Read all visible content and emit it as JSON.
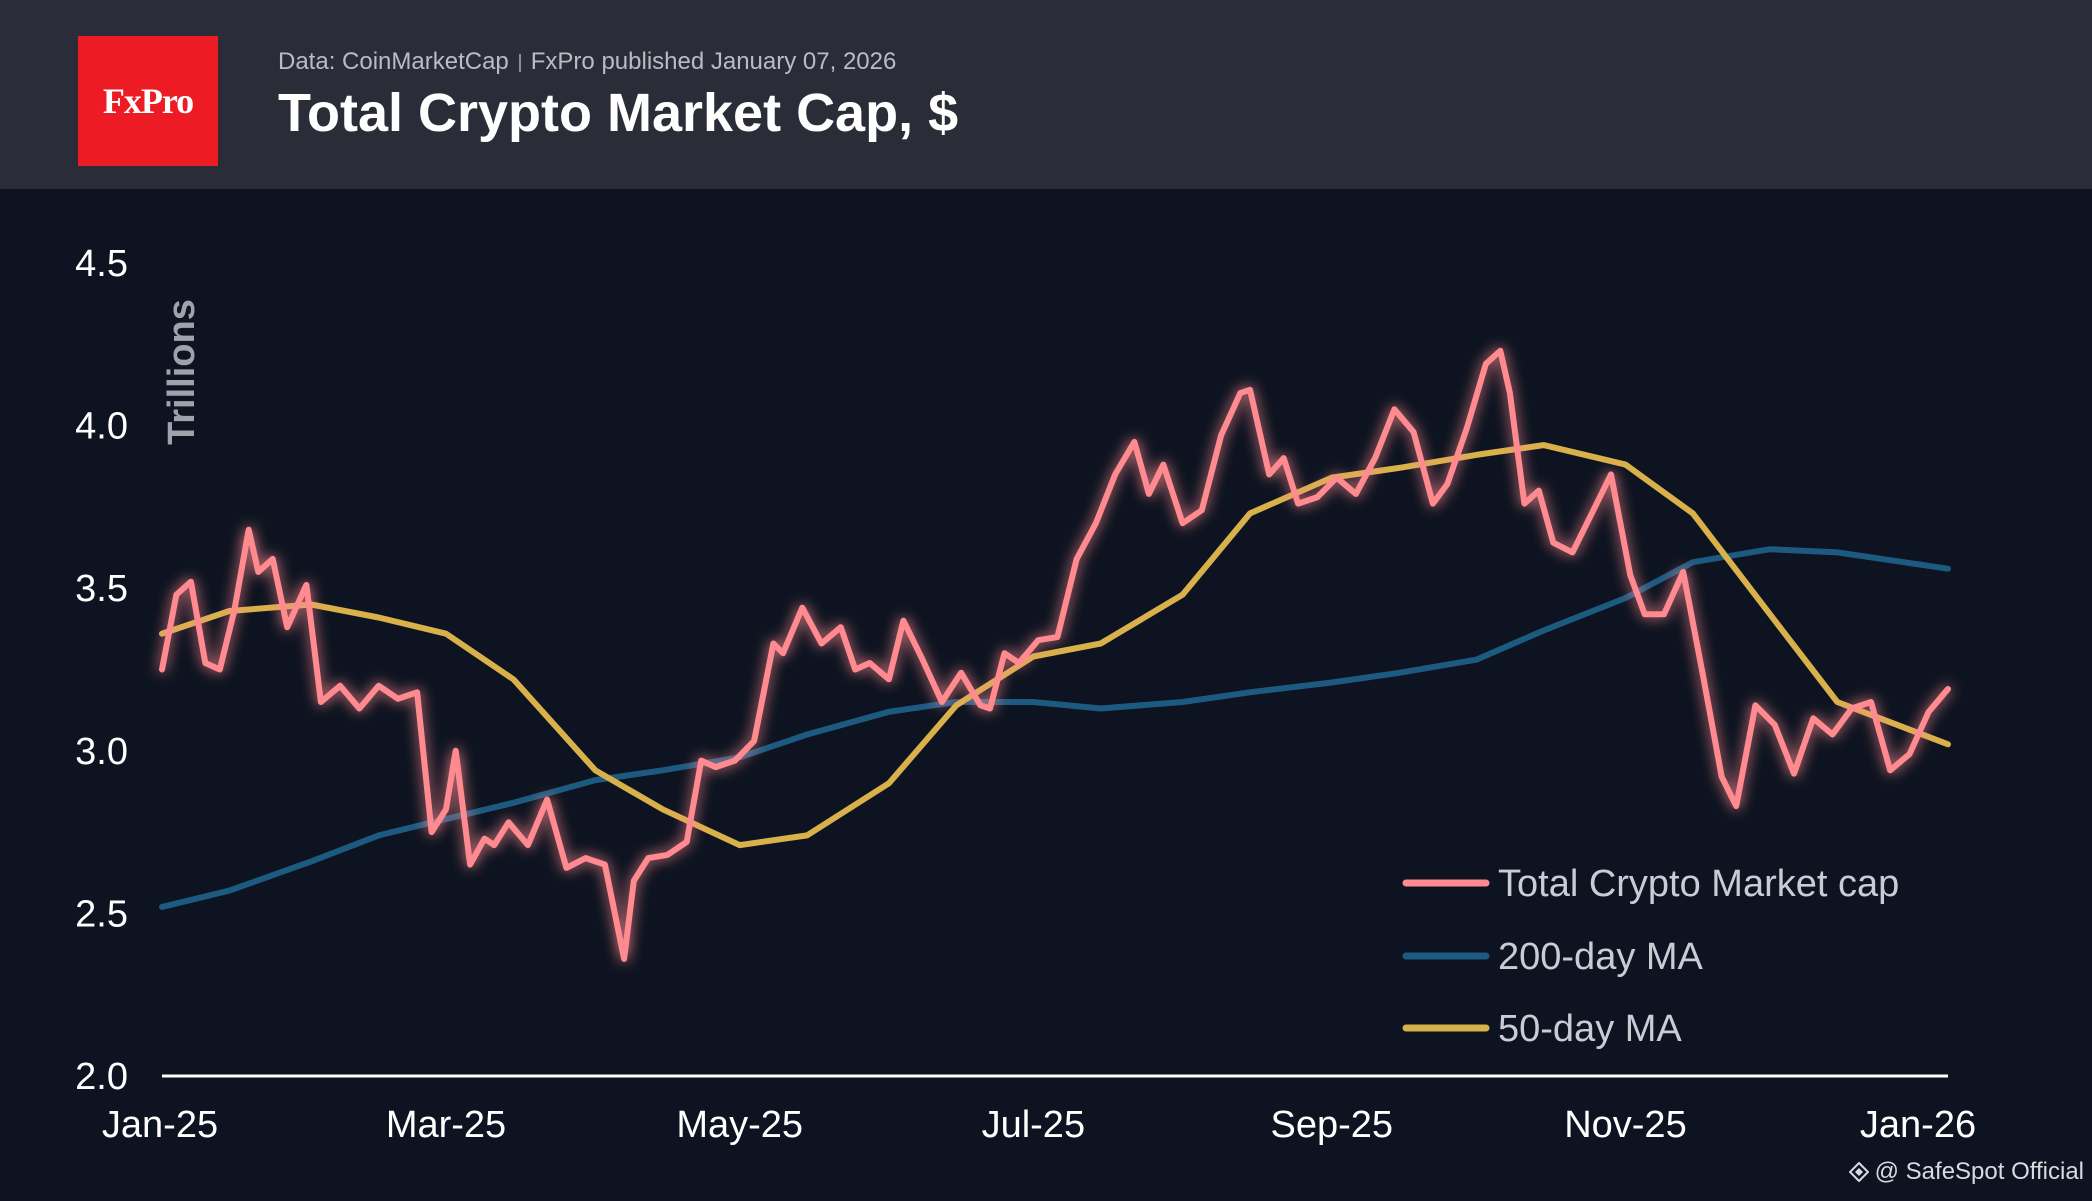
{
  "header": {
    "logo_text": "FxPro",
    "source": "Data: CoinMarketCap",
    "published": "FxPro published January 07, 2026",
    "title": "Total Crypto Market Cap, $"
  },
  "watermark": "@ SafeSpot Official",
  "colors": {
    "background": "#0d1320",
    "header_bg": "#2a2d38",
    "logo_bg": "#ec1b24",
    "market_cap": "#ff8a8f",
    "ma200": "#1d5a80",
    "ma50": "#d9b14a"
  },
  "chart_data": {
    "type": "line",
    "title": "Total Crypto Market Cap, $",
    "ylabel": "Trillions",
    "xlabel": "",
    "ylim": [
      2.0,
      4.5
    ],
    "yticks": [
      "2.0",
      "2.5",
      "3.0",
      "3.5",
      "4.0",
      "4.5"
    ],
    "xticks": [
      "Jan-25",
      "Mar-25",
      "May-25",
      "Jul-25",
      "Sep-25",
      "Nov-25",
      "Jan-26"
    ],
    "xlim": [
      "2025-01-01",
      "2026-01-07"
    ],
    "legend_position": "bottom-right",
    "grid": false,
    "series": [
      {
        "name": "Total Crypto Market cap",
        "x": [
          "2025-01-01",
          "2025-01-04",
          "2025-01-07",
          "2025-01-10",
          "2025-01-13",
          "2025-01-16",
          "2025-01-19",
          "2025-01-21",
          "2025-01-24",
          "2025-01-27",
          "2025-01-31",
          "2025-02-03",
          "2025-02-07",
          "2025-02-11",
          "2025-02-15",
          "2025-02-19",
          "2025-02-23",
          "2025-02-26",
          "2025-03-01",
          "2025-03-03",
          "2025-03-06",
          "2025-03-09",
          "2025-03-11",
          "2025-03-14",
          "2025-03-18",
          "2025-03-22",
          "2025-03-26",
          "2025-03-30",
          "2025-04-03",
          "2025-04-07",
          "2025-04-09",
          "2025-04-12",
          "2025-04-16",
          "2025-04-20",
          "2025-04-23",
          "2025-04-26",
          "2025-04-30",
          "2025-05-04",
          "2025-05-08",
          "2025-05-10",
          "2025-05-14",
          "2025-05-18",
          "2025-05-22",
          "2025-05-25",
          "2025-05-28",
          "2025-06-01",
          "2025-06-04",
          "2025-06-08",
          "2025-06-12",
          "2025-06-16",
          "2025-06-20",
          "2025-06-22",
          "2025-06-25",
          "2025-06-28",
          "2025-07-02",
          "2025-07-06",
          "2025-07-10",
          "2025-07-14",
          "2025-07-18",
          "2025-07-22",
          "2025-07-25",
          "2025-07-28",
          "2025-08-01",
          "2025-08-05",
          "2025-08-09",
          "2025-08-13",
          "2025-08-15",
          "2025-08-19",
          "2025-08-22",
          "2025-08-25",
          "2025-08-29",
          "2025-09-02",
          "2025-09-06",
          "2025-09-10",
          "2025-09-14",
          "2025-09-18",
          "2025-09-22",
          "2025-09-25",
          "2025-09-29",
          "2025-10-03",
          "2025-10-06",
          "2025-10-08",
          "2025-10-11",
          "2025-10-14",
          "2025-10-17",
          "2025-10-21",
          "2025-10-25",
          "2025-10-29",
          "2025-11-02",
          "2025-11-05",
          "2025-11-09",
          "2025-11-13",
          "2025-11-17",
          "2025-11-21",
          "2025-11-24",
          "2025-11-28",
          "2025-12-02",
          "2025-12-06",
          "2025-12-10",
          "2025-12-14",
          "2025-12-18",
          "2025-12-22",
          "2025-12-26",
          "2025-12-30",
          "2026-01-03",
          "2026-01-07"
        ],
        "values": [
          3.25,
          3.48,
          3.52,
          3.27,
          3.25,
          3.43,
          3.68,
          3.55,
          3.59,
          3.38,
          3.51,
          3.15,
          3.2,
          3.13,
          3.2,
          3.16,
          3.18,
          2.75,
          2.82,
          3.0,
          2.65,
          2.73,
          2.71,
          2.78,
          2.71,
          2.85,
          2.64,
          2.67,
          2.65,
          2.36,
          2.6,
          2.67,
          2.68,
          2.72,
          2.97,
          2.95,
          2.97,
          3.03,
          3.33,
          3.3,
          3.44,
          3.33,
          3.38,
          3.25,
          3.27,
          3.22,
          3.4,
          3.28,
          3.15,
          3.24,
          3.14,
          3.13,
          3.3,
          3.27,
          3.34,
          3.35,
          3.59,
          3.7,
          3.85,
          3.95,
          3.79,
          3.88,
          3.7,
          3.74,
          3.97,
          4.1,
          4.11,
          3.85,
          3.9,
          3.76,
          3.78,
          3.84,
          3.79,
          3.9,
          4.05,
          3.98,
          3.76,
          3.82,
          3.99,
          4.19,
          4.23,
          4.1,
          3.76,
          3.8,
          3.64,
          3.61,
          3.73,
          3.85,
          3.54,
          3.42,
          3.42,
          3.55,
          3.24,
          2.92,
          2.83,
          3.14,
          3.08,
          2.93,
          3.1,
          3.05,
          3.13,
          3.15,
          2.94,
          2.99,
          3.12,
          3.19
        ]
      },
      {
        "name": "200-day MA",
        "x": [
          "2025-01-01",
          "2025-01-15",
          "2025-02-01",
          "2025-02-15",
          "2025-03-01",
          "2025-03-15",
          "2025-04-01",
          "2025-04-15",
          "2025-05-01",
          "2025-05-15",
          "2025-06-01",
          "2025-06-15",
          "2025-07-01",
          "2025-07-15",
          "2025-08-01",
          "2025-08-15",
          "2025-09-01",
          "2025-09-15",
          "2025-10-01",
          "2025-10-15",
          "2025-11-01",
          "2025-11-15",
          "2025-12-01",
          "2025-12-15",
          "2026-01-07"
        ],
        "values": [
          2.52,
          2.57,
          2.66,
          2.74,
          2.79,
          2.84,
          2.91,
          2.94,
          2.98,
          3.05,
          3.12,
          3.15,
          3.15,
          3.13,
          3.15,
          3.18,
          3.21,
          3.24,
          3.28,
          3.37,
          3.47,
          3.58,
          3.62,
          3.61,
          3.56
        ]
      },
      {
        "name": "50-day MA",
        "x": [
          "2025-01-01",
          "2025-01-15",
          "2025-02-01",
          "2025-02-15",
          "2025-03-01",
          "2025-03-15",
          "2025-04-01",
          "2025-04-15",
          "2025-05-01",
          "2025-05-15",
          "2025-06-01",
          "2025-06-15",
          "2025-07-01",
          "2025-07-15",
          "2025-08-01",
          "2025-08-15",
          "2025-09-01",
          "2025-09-15",
          "2025-10-01",
          "2025-10-15",
          "2025-11-01",
          "2025-11-15",
          "2025-12-01",
          "2025-12-15",
          "2026-01-07"
        ],
        "values": [
          3.36,
          3.43,
          3.45,
          3.41,
          3.36,
          3.22,
          2.94,
          2.82,
          2.71,
          2.74,
          2.9,
          3.14,
          3.29,
          3.33,
          3.48,
          3.73,
          3.84,
          3.87,
          3.91,
          3.94,
          3.88,
          3.73,
          3.42,
          3.15,
          3.02
        ]
      }
    ]
  }
}
